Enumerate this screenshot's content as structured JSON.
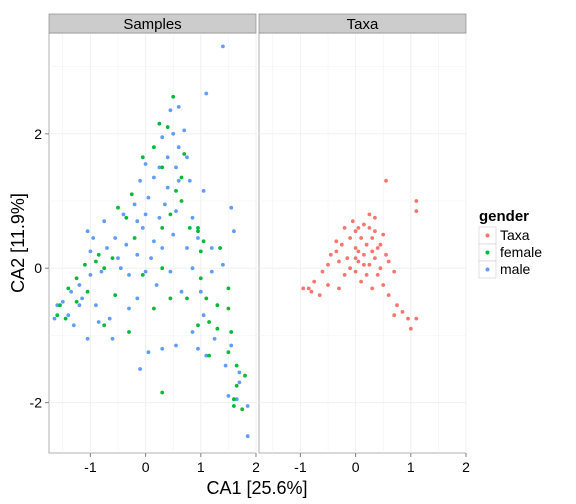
{
  "chart_data": {
    "type": "scatter",
    "facets": [
      "Samples",
      "Taxa"
    ],
    "xlabel": "CA1   [25.6%]",
    "ylabel": "CA2   [11.9%]",
    "xlim": [
      -1.75,
      2.0
    ],
    "ylim": [
      -2.75,
      3.5
    ],
    "x_ticks": [
      -1,
      0,
      1,
      2
    ],
    "x_tick_labels": [
      "-1",
      "0",
      "1",
      "2"
    ],
    "y_ticks": [
      -2,
      0,
      2
    ],
    "y_tick_labels": [
      "-2",
      "0",
      "2"
    ],
    "grid": true,
    "legend": {
      "title": "gender",
      "position": "right",
      "entries": [
        {
          "label": "Taxa",
          "color": "#F8766D"
        },
        {
          "label": "female",
          "color": "#00BA38"
        },
        {
          "label": "male",
          "color": "#619CFF"
        }
      ]
    },
    "series": [
      {
        "name": "male",
        "facet": "Samples",
        "color": "#619CFF",
        "points": [
          [
            1.4,
            3.3
          ],
          [
            1.1,
            2.6
          ],
          [
            0.6,
            2.4
          ],
          [
            0.45,
            2.35
          ],
          [
            0.7,
            2.05
          ],
          [
            0.5,
            2.0
          ],
          [
            0.3,
            1.95
          ],
          [
            0.6,
            1.8
          ],
          [
            0.75,
            1.65
          ],
          [
            0.55,
            1.5
          ],
          [
            0.25,
            1.5
          ],
          [
            0.4,
            1.65
          ],
          [
            0.0,
            1.55
          ],
          [
            0.8,
            1.3
          ],
          [
            0.6,
            1.3
          ],
          [
            0.15,
            1.35
          ],
          [
            0.4,
            1.2
          ],
          [
            -0.1,
            1.3
          ],
          [
            0.05,
            1.05
          ],
          [
            1.05,
            1.15
          ],
          [
            0.35,
            0.95
          ],
          [
            -0.2,
            0.95
          ],
          [
            0.0,
            0.8
          ],
          [
            0.55,
            0.85
          ],
          [
            0.25,
            0.75
          ],
          [
            0.85,
            0.75
          ],
          [
            1.55,
            0.9
          ],
          [
            1.6,
            0.55
          ],
          [
            -0.05,
            0.6
          ],
          [
            -0.15,
            0.7
          ],
          [
            -0.4,
            0.8
          ],
          [
            -0.75,
            0.7
          ],
          [
            -0.55,
            0.45
          ],
          [
            -0.95,
            0.45
          ],
          [
            -1.0,
            0.25
          ],
          [
            -1.05,
            0.55
          ],
          [
            -0.7,
            0.3
          ],
          [
            -0.35,
            0.35
          ],
          [
            -0.5,
            0.15
          ],
          [
            -0.15,
            0.2
          ],
          [
            0.1,
            0.15
          ],
          [
            0.3,
            0.3
          ],
          [
            0.15,
            0.4
          ],
          [
            0.5,
            0.5
          ],
          [
            0.75,
            0.3
          ],
          [
            0.95,
            0.45
          ],
          [
            1.2,
            0.3
          ],
          [
            1.4,
            0.05
          ],
          [
            1.2,
            -0.05
          ],
          [
            0.85,
            0.0
          ],
          [
            0.45,
            -0.05
          ],
          [
            0.0,
            -0.05
          ],
          [
            -0.3,
            -0.1
          ],
          [
            -0.45,
            0.0
          ],
          [
            -0.8,
            -0.05
          ],
          [
            -1.0,
            -0.1
          ],
          [
            -1.2,
            -0.25
          ],
          [
            -1.35,
            -0.35
          ],
          [
            -1.5,
            -0.5
          ],
          [
            -1.6,
            -0.55
          ],
          [
            -1.65,
            -0.75
          ],
          [
            -1.4,
            -0.7
          ],
          [
            -1.3,
            -0.85
          ],
          [
            -1.2,
            -0.55
          ],
          [
            -0.9,
            -0.55
          ],
          [
            -0.85,
            -0.8
          ],
          [
            -1.05,
            -1.05
          ],
          [
            -1.15,
            -0.45
          ],
          [
            -0.6,
            -1.05
          ],
          [
            -0.65,
            -0.75
          ],
          [
            -0.3,
            -0.6
          ],
          [
            -0.15,
            -0.45
          ],
          [
            0.2,
            -0.25
          ],
          [
            0.65,
            -0.35
          ],
          [
            1.0,
            -0.35
          ],
          [
            1.05,
            -0.7
          ],
          [
            0.85,
            -0.95
          ],
          [
            1.25,
            -1.05
          ],
          [
            1.55,
            -1.15
          ],
          [
            1.45,
            -1.45
          ],
          [
            1.7,
            -1.55
          ],
          [
            1.7,
            -1.7
          ],
          [
            1.65,
            -1.95
          ],
          [
            1.85,
            -2.05
          ],
          [
            1.85,
            -2.5
          ],
          [
            1.5,
            -1.9
          ],
          [
            0.3,
            -1.2
          ],
          [
            0.05,
            -1.25
          ],
          [
            -0.1,
            -1.5
          ],
          [
            0.55,
            -1.15
          ],
          [
            0.95,
            -1.2
          ],
          [
            1.1,
            -1.3
          ]
        ]
      },
      {
        "name": "female",
        "facet": "Samples",
        "color": "#00BA38",
        "points": [
          [
            0.5,
            2.55
          ],
          [
            0.4,
            2.1
          ],
          [
            0.25,
            2.15
          ],
          [
            0.7,
            1.7
          ],
          [
            0.15,
            1.8
          ],
          [
            -0.05,
            1.65
          ],
          [
            0.3,
            1.5
          ],
          [
            0.65,
            1.35
          ],
          [
            0.55,
            1.15
          ],
          [
            -0.25,
            1.1
          ],
          [
            -0.5,
            0.9
          ],
          [
            -0.35,
            0.75
          ],
          [
            0.45,
            0.8
          ],
          [
            0.8,
            0.6
          ],
          [
            0.95,
            0.55
          ],
          [
            1.05,
            0.4
          ],
          [
            1.35,
            0.3
          ],
          [
            1.0,
            0.25
          ],
          [
            0.3,
            0.6
          ],
          [
            -0.2,
            0.45
          ],
          [
            -0.6,
            0.15
          ],
          [
            -0.85,
            0.2
          ],
          [
            -0.75,
            0.0
          ],
          [
            -1.1,
            0.05
          ],
          [
            -0.9,
            0.1
          ],
          [
            -1.25,
            -0.15
          ],
          [
            -1.4,
            -0.3
          ],
          [
            -1.55,
            -0.55
          ],
          [
            -1.6,
            -0.7
          ],
          [
            -1.45,
            -0.75
          ],
          [
            -1.25,
            -0.5
          ],
          [
            -1.05,
            -0.35
          ],
          [
            -0.55,
            -0.4
          ],
          [
            -0.75,
            -0.85
          ],
          [
            -0.3,
            -0.95
          ],
          [
            0.45,
            -0.45
          ],
          [
            0.75,
            -0.45
          ],
          [
            1.1,
            -0.45
          ],
          [
            1.3,
            -0.55
          ],
          [
            0.95,
            -0.85
          ],
          [
            1.15,
            -0.8
          ],
          [
            1.3,
            -0.9
          ],
          [
            1.5,
            -0.3
          ],
          [
            1.5,
            -0.6
          ],
          [
            1.5,
            -1.25
          ],
          [
            1.65,
            -1.45
          ],
          [
            1.8,
            -1.6
          ],
          [
            1.65,
            -1.75
          ],
          [
            1.6,
            -2.05
          ],
          [
            1.75,
            -2.1
          ],
          [
            0.3,
            -1.85
          ],
          [
            1.6,
            -1.95
          ],
          [
            1.55,
            -0.95
          ],
          [
            1.15,
            -1.3
          ],
          [
            0.15,
            -0.6
          ],
          [
            -0.05,
            -0.1
          ],
          [
            0.3,
            0.0
          ],
          [
            0.65,
            1.0
          ],
          [
            0.95,
            0.6
          ],
          [
            1.0,
            -0.15
          ]
        ]
      },
      {
        "name": "Taxa",
        "facet": "Taxa",
        "color": "#F8766D",
        "points": [
          [
            0.55,
            1.3
          ],
          [
            1.1,
            1.0
          ],
          [
            1.1,
            0.85
          ],
          [
            0.35,
            0.75
          ],
          [
            0.15,
            0.65
          ],
          [
            0.05,
            0.6
          ],
          [
            0.25,
            0.6
          ],
          [
            0.0,
            0.55
          ],
          [
            -0.2,
            0.6
          ],
          [
            0.3,
            0.45
          ],
          [
            0.5,
            0.5
          ],
          [
            0.1,
            0.45
          ],
          [
            -0.1,
            0.45
          ],
          [
            0.2,
            0.35
          ],
          [
            0.4,
            0.3
          ],
          [
            0.0,
            0.3
          ],
          [
            -0.25,
            0.35
          ],
          [
            -0.35,
            0.4
          ],
          [
            0.15,
            0.2
          ],
          [
            0.35,
            0.15
          ],
          [
            0.55,
            0.2
          ],
          [
            0.05,
            0.1
          ],
          [
            -0.15,
            0.15
          ],
          [
            -0.3,
            0.1
          ],
          [
            -0.1,
            0.0
          ],
          [
            0.25,
            0.05
          ],
          [
            0.45,
            0.0
          ],
          [
            0.0,
            -0.05
          ],
          [
            0.2,
            -0.1
          ],
          [
            0.4,
            -0.1
          ],
          [
            -0.35,
            0.25
          ],
          [
            -0.5,
            0.05
          ],
          [
            -0.45,
            0.2
          ],
          [
            0.05,
            0.25
          ],
          [
            0.6,
            0.1
          ],
          [
            0.7,
            -0.05
          ],
          [
            0.5,
            -0.25
          ],
          [
            0.3,
            -0.3
          ],
          [
            0.6,
            -0.4
          ],
          [
            0.75,
            -0.55
          ],
          [
            0.85,
            -0.65
          ],
          [
            0.7,
            -0.7
          ],
          [
            0.95,
            -0.75
          ],
          [
            1.0,
            -0.9
          ],
          [
            1.1,
            -0.75
          ],
          [
            -0.6,
            -0.05
          ],
          [
            -0.75,
            -0.2
          ],
          [
            -0.85,
            -0.3
          ],
          [
            -0.95,
            -0.3
          ],
          [
            -0.8,
            -0.35
          ],
          [
            -0.65,
            -0.4
          ],
          [
            -0.5,
            -0.25
          ],
          [
            -0.3,
            -0.3
          ],
          [
            -0.2,
            -0.1
          ],
          [
            0.1,
            -0.2
          ],
          [
            0.35,
            0.55
          ],
          [
            0.25,
            0.8
          ],
          [
            0.15,
            0.05
          ],
          [
            0.0,
            0.15
          ],
          [
            0.45,
            0.35
          ],
          [
            0.3,
            0.25
          ],
          [
            -0.05,
            0.7
          ]
        ]
      }
    ]
  }
}
